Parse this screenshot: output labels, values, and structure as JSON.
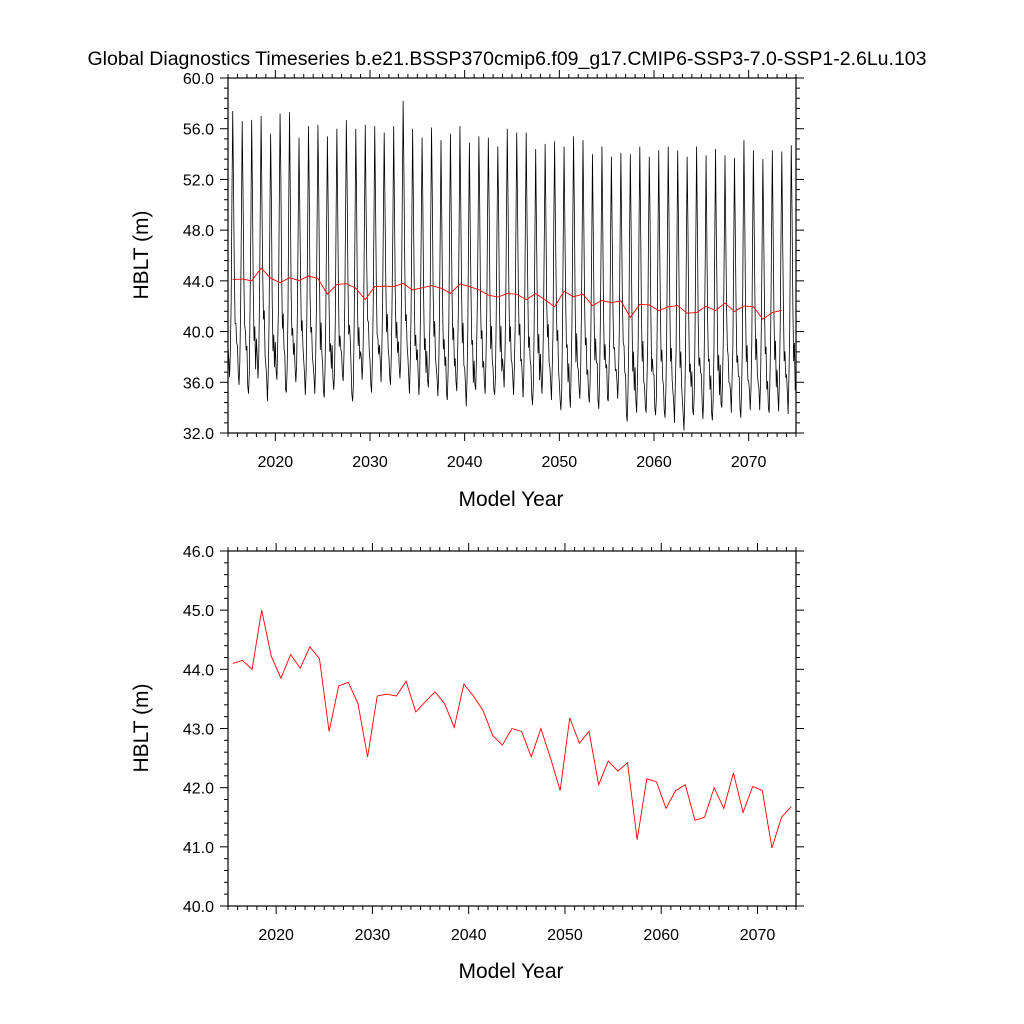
{
  "title": "Global Diagnostics Timeseries b.e21.BSSP370cmip6.f09_g17.CMIP6-SSP3-7.0-SSP1-2.6Lu.103",
  "colors": {
    "monthly": "#000000",
    "annual": "#ff0000",
    "axis": "#000000"
  },
  "chart_data": [
    {
      "type": "line",
      "xlabel": "Model Year",
      "ylabel": "HBLT (m)",
      "xlim": [
        2015,
        2075
      ],
      "ylim": [
        32.0,
        60.0
      ],
      "xticks": [
        2020,
        2030,
        2040,
        2050,
        2060,
        2070
      ],
      "yticks": [
        32.0,
        36.0,
        40.0,
        44.0,
        48.0,
        52.0,
        56.0,
        60.0
      ],
      "ytick_labels": [
        "32.0",
        "36.0",
        "40.0",
        "44.0",
        "48.0",
        "52.0",
        "56.0",
        "60.0"
      ],
      "grid": false,
      "series": [
        {
          "key": "monthly",
          "values_per_year": 12,
          "x_start": 2015,
          "annual_peaks": [
            57.4,
            56.6,
            56.7,
            57.0,
            55.6,
            57.2,
            57.3,
            55.3,
            56.2,
            56.3,
            55.4,
            56.0,
            56.7,
            56.0,
            56.3,
            56.2,
            55.7,
            56.2,
            58.2,
            56.0,
            55.3,
            56.1,
            55.1,
            55.6,
            56.2,
            54.9,
            55.4,
            55.3,
            54.6,
            56.0,
            55.7,
            55.7,
            54.4,
            54.8,
            55.0,
            54.6,
            55.4,
            55.1,
            54.0,
            54.6,
            53.8,
            54.1,
            54.0,
            54.6,
            53.8,
            54.3,
            54.6,
            54.3,
            53.8,
            54.6,
            53.9,
            54.4,
            53.9,
            53.7,
            55.1,
            54.3,
            53.6,
            54.3,
            54.2,
            54.7
          ],
          "annual_troughs": [
            36.4,
            35.8,
            35.1,
            36.3,
            34.5,
            36.2,
            35.2,
            36.0,
            35.0,
            35.1,
            34.8,
            35.4,
            36.1,
            34.5,
            36.2,
            35.2,
            36.0,
            35.8,
            36.3,
            35.1,
            35.0,
            35.6,
            34.9,
            34.6,
            35.3,
            34.1,
            35.4,
            35.1,
            35.0,
            35.6,
            35.0,
            34.8,
            34.2,
            35.1,
            34.6,
            33.8,
            34.0,
            34.7,
            34.4,
            33.9,
            34.5,
            34.7,
            32.9,
            33.6,
            33.6,
            33.4,
            33.2,
            32.8,
            32.2,
            33.4,
            33.1,
            33.0,
            34.0,
            33.6,
            33.2,
            33.8,
            33.8,
            33.6,
            33.7,
            33.5
          ]
        },
        {
          "key": "annual",
          "x": [
            2015.5,
            2016.5,
            2017.5,
            2018.5,
            2019.5,
            2020.5,
            2021.5,
            2022.5,
            2023.5,
            2024.5,
            2025.5,
            2026.5,
            2027.5,
            2028.5,
            2029.5,
            2030.5,
            2031.5,
            2032.5,
            2033.5,
            2034.5,
            2035.5,
            2036.5,
            2037.5,
            2038.5,
            2039.5,
            2040.5,
            2041.5,
            2042.5,
            2043.5,
            2044.5,
            2045.5,
            2046.5,
            2047.5,
            2048.5,
            2049.5,
            2050.5,
            2051.5,
            2052.5,
            2053.5,
            2054.5,
            2055.5,
            2056.5,
            2057.5,
            2058.5,
            2059.5,
            2060.5,
            2061.5,
            2062.5,
            2063.5,
            2064.5,
            2065.5,
            2066.5,
            2067.5,
            2068.5,
            2069.5,
            2070.5,
            2071.5,
            2072.5,
            2073.5
          ],
          "values": [
            44.1,
            44.15,
            44.0,
            45.0,
            44.22,
            43.85,
            44.25,
            44.02,
            44.38,
            44.18,
            42.95,
            43.72,
            43.78,
            43.42,
            42.52,
            43.55,
            43.58,
            43.55,
            43.8,
            43.28,
            43.45,
            43.62,
            43.42,
            43.02,
            43.75,
            43.55,
            43.3,
            42.88,
            42.72,
            43.0,
            42.95,
            42.52,
            43.0,
            42.5,
            41.95,
            43.18,
            42.75,
            42.95,
            42.05,
            42.45,
            42.28,
            42.42,
            41.12,
            42.15,
            42.1,
            41.65,
            41.95,
            42.05,
            41.45,
            41.5,
            42.0,
            41.65,
            42.25,
            41.58,
            42.02,
            41.95,
            40.98,
            41.5,
            41.68
          ]
        }
      ]
    },
    {
      "type": "line",
      "xlabel": "Model Year",
      "ylabel": "HBLT (m)",
      "xlim": [
        2015,
        2074
      ],
      "ylim": [
        40.0,
        46.0
      ],
      "xticks": [
        2020,
        2030,
        2040,
        2050,
        2060,
        2070
      ],
      "yticks": [
        40.0,
        41.0,
        42.0,
        43.0,
        44.0,
        45.0,
        46.0
      ],
      "ytick_labels": [
        "40.0",
        "41.0",
        "42.0",
        "43.0",
        "44.0",
        "45.0",
        "46.0"
      ],
      "grid": false,
      "series": [
        {
          "key": "annual",
          "x": [
            2015.5,
            2016.5,
            2017.5,
            2018.5,
            2019.5,
            2020.5,
            2021.5,
            2022.5,
            2023.5,
            2024.5,
            2025.5,
            2026.5,
            2027.5,
            2028.5,
            2029.5,
            2030.5,
            2031.5,
            2032.5,
            2033.5,
            2034.5,
            2035.5,
            2036.5,
            2037.5,
            2038.5,
            2039.5,
            2040.5,
            2041.5,
            2042.5,
            2043.5,
            2044.5,
            2045.5,
            2046.5,
            2047.5,
            2048.5,
            2049.5,
            2050.5,
            2051.5,
            2052.5,
            2053.5,
            2054.5,
            2055.5,
            2056.5,
            2057.5,
            2058.5,
            2059.5,
            2060.5,
            2061.5,
            2062.5,
            2063.5,
            2064.5,
            2065.5,
            2066.5,
            2067.5,
            2068.5,
            2069.5,
            2070.5,
            2071.5,
            2072.5,
            2073.5
          ],
          "values": [
            44.1,
            44.15,
            44.0,
            45.0,
            44.22,
            43.85,
            44.25,
            44.02,
            44.38,
            44.18,
            42.95,
            43.72,
            43.78,
            43.42,
            42.52,
            43.55,
            43.58,
            43.55,
            43.8,
            43.28,
            43.45,
            43.62,
            43.42,
            43.02,
            43.75,
            43.55,
            43.3,
            42.88,
            42.72,
            43.0,
            42.95,
            42.52,
            43.0,
            42.5,
            41.95,
            43.18,
            42.75,
            42.95,
            42.05,
            42.45,
            42.28,
            42.42,
            41.12,
            42.15,
            42.1,
            41.65,
            41.95,
            42.05,
            41.45,
            41.5,
            42.0,
            41.65,
            42.25,
            41.58,
            42.02,
            41.95,
            40.98,
            41.5,
            41.68
          ]
        }
      ]
    }
  ]
}
